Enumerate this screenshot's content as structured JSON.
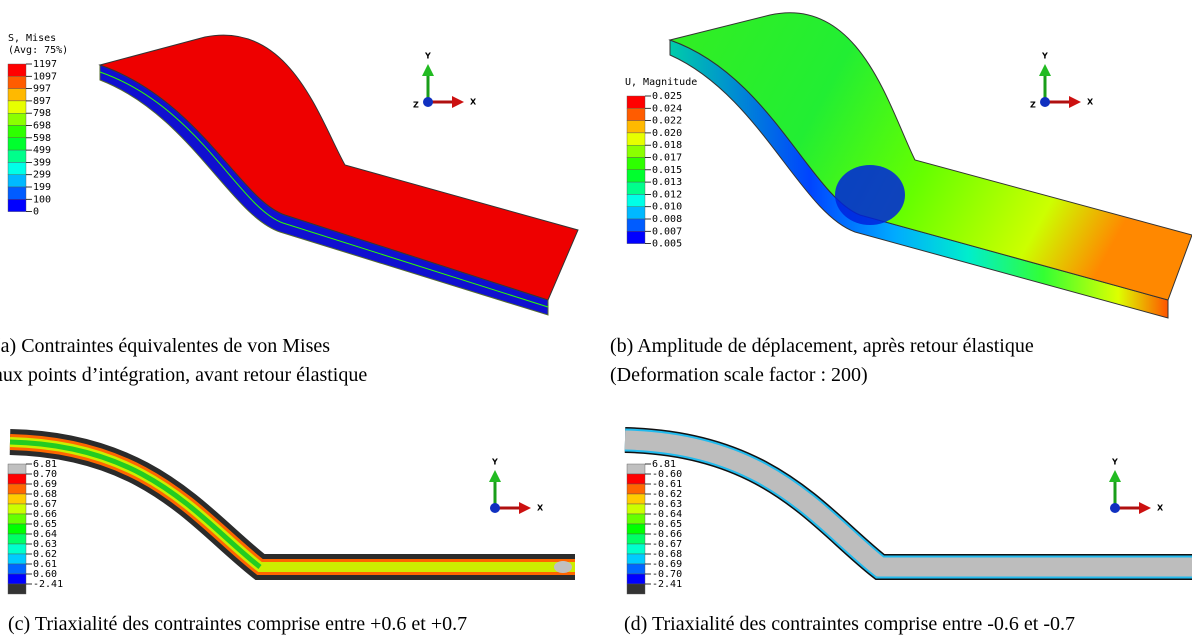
{
  "panels": [
    {
      "legend": {
        "title": [
          "S, Mises",
          "(Avg: 75%)"
        ],
        "labels": [
          "1197",
          "1097",
          "997",
          "897",
          "798",
          "698",
          "598",
          "499",
          "399",
          "299",
          "199",
          "100",
          "0"
        ],
        "colors": [
          "#ff0000",
          "#ff5c00",
          "#ffb900",
          "#e7ff00",
          "#8bff00",
          "#2eff00",
          "#00ff2e",
          "#00ff8b",
          "#00ffe7",
          "#00b9ff",
          "#005cff",
          "#0000ff"
        ]
      },
      "triad": {
        "y": "Y",
        "x": "X",
        "z": "Z"
      },
      "caption": [
        "(a) Contraintes équivalentes de von Mises",
        "aux points d’intégration, avant retour élastique"
      ]
    },
    {
      "legend": {
        "title": [
          "U, Magnitude"
        ],
        "labels": [
          "0.025",
          "0.024",
          "0.022",
          "0.020",
          "0.018",
          "0.017",
          "0.015",
          "0.013",
          "0.012",
          "0.010",
          "0.008",
          "0.007",
          "0.005"
        ],
        "colors": [
          "#ff0000",
          "#ff5c00",
          "#ffb900",
          "#e7ff00",
          "#8bff00",
          "#2eff00",
          "#00ff2e",
          "#00ff8b",
          "#00ffe7",
          "#00b9ff",
          "#005cff",
          "#0000ff"
        ]
      },
      "triad": {
        "y": "Y",
        "x": "X",
        "z": "Z"
      },
      "caption": [
        "(b) Amplitude de déplacement, après retour élastique",
        "(Deformation scale factor : 200)"
      ]
    },
    {
      "legend": {
        "title": [],
        "labels": [
          "6.81",
          "0.70",
          "0.69",
          "0.68",
          "0.67",
          "0.66",
          "0.65",
          "0.64",
          "0.63",
          "0.62",
          "0.61",
          "0.60",
          "-2.41"
        ],
        "colors": [
          "#c0c0c0",
          "#ff0000",
          "#ff6600",
          "#ffcc00",
          "#ccff00",
          "#66ff00",
          "#00ff00",
          "#00ff66",
          "#00ffcc",
          "#00ccff",
          "#0066ff",
          "#0000ff",
          "#333333"
        ]
      },
      "triad": {
        "y": "Y",
        "x": "X"
      },
      "caption": [
        "(c) Triaxialité des contraintes comprise entre +0.6 et +0.7"
      ]
    },
    {
      "legend": {
        "title": [],
        "labels": [
          "6.81",
          "-0.60",
          "-0.61",
          "-0.62",
          "-0.63",
          "-0.64",
          "-0.65",
          "-0.66",
          "-0.67",
          "-0.68",
          "-0.69",
          "-0.70",
          "-2.41"
        ],
        "colors": [
          "#c0c0c0",
          "#ff0000",
          "#ff6600",
          "#ffcc00",
          "#ccff00",
          "#66ff00",
          "#00ff00",
          "#00ff66",
          "#00ffcc",
          "#00ccff",
          "#0066ff",
          "#0000ff",
          "#333333"
        ]
      },
      "triad": {
        "y": "Y",
        "x": "X"
      },
      "caption": [
        "(d) Triaxialité des contraintes comprise entre -0.6 et -0.7"
      ]
    }
  ]
}
